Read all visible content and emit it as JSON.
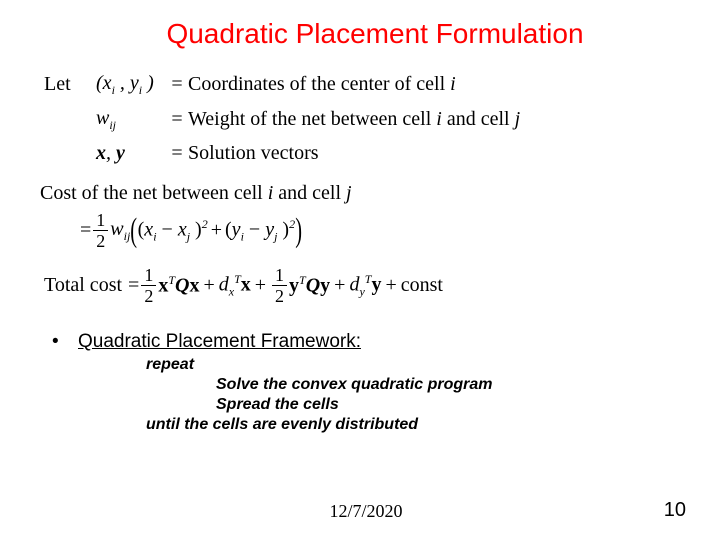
{
  "title": "Quadratic Placement Formulation",
  "let_label": "Let",
  "defs": [
    {
      "symbol_html": "(x<i><sub>i</sub></i> , y<sub>i</sub> )",
      "desc_pre": "Coordinates of the center of cell ",
      "desc_var": "i"
    },
    {
      "symbol_html": "w<sub>ij</sub>",
      "desc_pre": "Weight of the net between cell ",
      "desc_var": "i",
      "desc_mid": " and cell ",
      "desc_var2": "j"
    },
    {
      "symbol_html": "<b>x</b>, <b>y</b>",
      "desc_pre": "Solution vectors",
      "desc_var": ""
    }
  ],
  "cost_line_pre": "Cost of the net between cell ",
  "cost_line_i": "i",
  "cost_line_mid": " and cell ",
  "cost_line_j": "j",
  "eq_sign": "=",
  "half_num": "1",
  "half_den": "2",
  "wij": "w",
  "wij_sub": "ij",
  "sq_term1_a": "x",
  "sq_term1_ai": "i",
  "sq_term1_b": "x",
  "sq_term1_bj": "j",
  "sq_term2_a": "y",
  "sq_term2_ai": "i",
  "sq_term2_b": "y",
  "sq_term2_bj": "j",
  "plus": "+",
  "minus": "−",
  "exp2": "2",
  "total_label": "Total cost",
  "tc_terms": {
    "x": "x",
    "Q": "Q",
    "y": "y",
    "d": "d",
    "T": "T",
    "plus": "+",
    "const": "const"
  },
  "bullet_label": "Quadratic Placement Framework:",
  "algo": {
    "repeat": "repeat",
    "line1": "Solve the convex quadratic program",
    "line2": "Spread the cells",
    "until": "until the cells are evenly distributed"
  },
  "footer": {
    "date": "12/7/2020",
    "page": "10"
  },
  "colors": {
    "title": "#ff0000",
    "text": "#000000",
    "background": "#ffffff"
  }
}
